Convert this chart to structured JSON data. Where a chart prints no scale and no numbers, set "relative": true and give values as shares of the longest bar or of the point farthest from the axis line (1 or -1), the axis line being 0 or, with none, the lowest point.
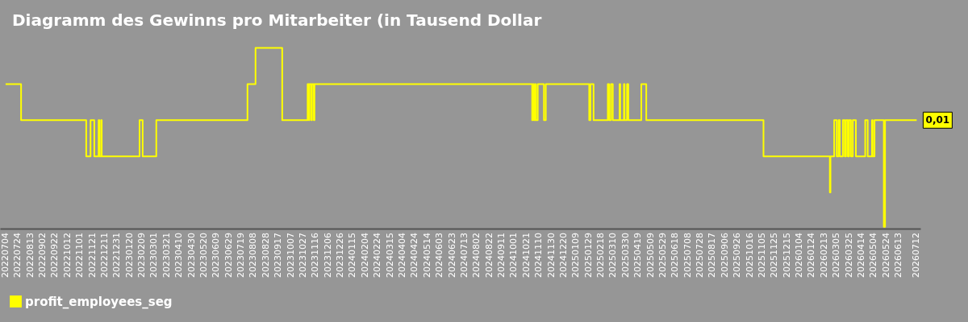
{
  "chart_data": {
    "type": "step",
    "title": "Diagramm des Gewinns pro Mitarbeiter (in Tausend Dollar",
    "relative": true,
    "legend": "bottom",
    "xlim": [
      "2022-06-25",
      "2026-07-18"
    ],
    "xticks": [
      {
        "value": "2022-07-04",
        "label": "20220704"
      },
      {
        "value": "2022-07-24",
        "label": "20220724"
      },
      {
        "value": "2022-08-13",
        "label": "20220813"
      },
      {
        "value": "2022-09-02",
        "label": "20220902"
      },
      {
        "value": "2022-09-22",
        "label": "20220922"
      },
      {
        "value": "2022-10-12",
        "label": "20221012"
      },
      {
        "value": "2022-11-01",
        "label": "20221101"
      },
      {
        "value": "2022-11-21",
        "label": "20221121"
      },
      {
        "value": "2022-12-11",
        "label": "20221211"
      },
      {
        "value": "2022-12-31",
        "label": "20221231"
      },
      {
        "value": "2023-01-20",
        "label": "20230120"
      },
      {
        "value": "2023-02-09",
        "label": "20230209"
      },
      {
        "value": "2023-03-01",
        "label": "20230301"
      },
      {
        "value": "2023-03-21",
        "label": "20230321"
      },
      {
        "value": "2023-04-10",
        "label": "20230410"
      },
      {
        "value": "2023-04-30",
        "label": "20230430"
      },
      {
        "value": "2023-05-20",
        "label": "20230520"
      },
      {
        "value": "2023-06-09",
        "label": "20230609"
      },
      {
        "value": "2023-06-29",
        "label": "20230629"
      },
      {
        "value": "2023-07-19",
        "label": "20230719"
      },
      {
        "value": "2023-08-08",
        "label": "20230808"
      },
      {
        "value": "2023-08-28",
        "label": "20230828"
      },
      {
        "value": "2023-09-17",
        "label": "20230917"
      },
      {
        "value": "2023-10-07",
        "label": "20231007"
      },
      {
        "value": "2023-10-27",
        "label": "20231027"
      },
      {
        "value": "2023-11-16",
        "label": "20231116"
      },
      {
        "value": "2023-12-06",
        "label": "20231206"
      },
      {
        "value": "2023-12-26",
        "label": "20231226"
      },
      {
        "value": "2024-01-15",
        "label": "20240115"
      },
      {
        "value": "2024-02-04",
        "label": "20240204"
      },
      {
        "value": "2024-02-24",
        "label": "20240224"
      },
      {
        "value": "2024-03-15",
        "label": "20240315"
      },
      {
        "value": "2024-04-04",
        "label": "20240404"
      },
      {
        "value": "2024-04-24",
        "label": "20240424"
      },
      {
        "value": "2024-05-14",
        "label": "20240514"
      },
      {
        "value": "2024-06-03",
        "label": "20240603"
      },
      {
        "value": "2024-06-23",
        "label": "20240623"
      },
      {
        "value": "2024-07-13",
        "label": "20240713"
      },
      {
        "value": "2024-08-02",
        "label": "20240802"
      },
      {
        "value": "2024-08-22",
        "label": "20240822"
      },
      {
        "value": "2024-09-11",
        "label": "20240911"
      },
      {
        "value": "2024-10-01",
        "label": "20241001"
      },
      {
        "value": "2024-10-21",
        "label": "20241021"
      },
      {
        "value": "2024-11-10",
        "label": "20241110"
      },
      {
        "value": "2024-11-30",
        "label": "20241130"
      },
      {
        "value": "2024-12-20",
        "label": "20241220"
      },
      {
        "value": "2025-01-09",
        "label": "20250109"
      },
      {
        "value": "2025-01-29",
        "label": "20250129"
      },
      {
        "value": "2025-02-18",
        "label": "20250218"
      },
      {
        "value": "2025-03-10",
        "label": "20250310"
      },
      {
        "value": "2025-03-30",
        "label": "20250330"
      },
      {
        "value": "2025-04-19",
        "label": "20250419"
      },
      {
        "value": "2025-05-09",
        "label": "20250509"
      },
      {
        "value": "2025-05-29",
        "label": "20250529"
      },
      {
        "value": "2025-06-18",
        "label": "20250618"
      },
      {
        "value": "2025-07-08",
        "label": "20250708"
      },
      {
        "value": "2025-07-28",
        "label": "20250728"
      },
      {
        "value": "2025-08-17",
        "label": "20250817"
      },
      {
        "value": "2025-09-06",
        "label": "20250906"
      },
      {
        "value": "2025-09-26",
        "label": "20250926"
      },
      {
        "value": "2025-10-16",
        "label": "20251016"
      },
      {
        "value": "2025-11-05",
        "label": "20251105"
      },
      {
        "value": "2025-11-25",
        "label": "20251125"
      },
      {
        "value": "2025-12-15",
        "label": "20251215"
      },
      {
        "value": "2026-01-04",
        "label": "20260104"
      },
      {
        "value": "2026-01-24",
        "label": "20260124"
      },
      {
        "value": "2026-02-13",
        "label": "20260213"
      },
      {
        "value": "2026-03-05",
        "label": "20260305"
      },
      {
        "value": "2026-03-25",
        "label": "20260325"
      },
      {
        "value": "2026-04-14",
        "label": "20260414"
      },
      {
        "value": "2026-05-04",
        "label": "20260504"
      },
      {
        "value": "2026-05-24",
        "label": "20260524"
      },
      {
        "value": "2026-06-13",
        "label": "20260613"
      },
      {
        "value": "2026-07-12",
        "label": "20260712"
      }
    ],
    "x": [
      "2022-07-04",
      "2022-07-29",
      "2022-11-11",
      "2022-11-18",
      "2022-11-24",
      "2022-12-01",
      "2022-12-02",
      "2022-12-05",
      "2022-12-06",
      "2023-02-05",
      "2023-02-10",
      "2023-03-04",
      "2023-07-29",
      "2023-08-11",
      "2023-09-23",
      "2023-11-03",
      "2023-11-05",
      "2023-11-06",
      "2023-11-09",
      "2023-11-10",
      "2023-11-13",
      "2023-11-14",
      "2024-10-30",
      "2024-10-31",
      "2024-11-02",
      "2024-11-04",
      "2024-11-05",
      "2024-11-08",
      "2024-11-18",
      "2024-11-21",
      "2025-01-30",
      "2025-02-01",
      "2025-02-06",
      "2025-03-01",
      "2025-03-03",
      "2025-03-06",
      "2025-03-09",
      "2025-03-20",
      "2025-03-21",
      "2025-03-27",
      "2025-03-28",
      "2025-04-01",
      "2025-04-03",
      "2025-04-24",
      "2025-05-02",
      "2025-11-07",
      "2026-02-22",
      "2026-02-23",
      "2026-03-01",
      "2026-03-05",
      "2026-03-08",
      "2026-03-10",
      "2026-03-15",
      "2026-03-18",
      "2026-03-20",
      "2026-03-23",
      "2026-03-25",
      "2026-03-28",
      "2026-03-31",
      "2026-04-05",
      "2026-04-20",
      "2026-04-24",
      "2026-05-01",
      "2026-05-02",
      "2026-05-05",
      "2026-05-20",
      "2026-05-22",
      "2026-07-12"
    ],
    "series": [
      {
        "name": "profit_employees_seg",
        "color": "#ffff00",
        "values": [
          0.8,
          0.6,
          0.4,
          0.6,
          0.4,
          0.6,
          0.4,
          0.6,
          0.4,
          0.6,
          0.4,
          0.6,
          0.8,
          1,
          0.6,
          0.8,
          0.6,
          0.8,
          0.6,
          0.8,
          0.6,
          0.8,
          0.6,
          0.8,
          0.6,
          0.8,
          0.6,
          0.8,
          0.6,
          0.8,
          0.6,
          0.8,
          0.6,
          0.8,
          0.6,
          0.8,
          0.6,
          0.8,
          0.6,
          0.8,
          0.6,
          0.8,
          0.6,
          0.8,
          0.6,
          0.4,
          0.2,
          0.4,
          0.6,
          0.4,
          0.6,
          0.4,
          0.6,
          0.4,
          0.6,
          0.4,
          0.6,
          0.4,
          0.6,
          0.4,
          0.6,
          0.4,
          0.6,
          0.4,
          0.6,
          0.01,
          0.6,
          0.6
        ]
      }
    ],
    "annotations": [
      {
        "text": "0,01",
        "x": "2026-07-12",
        "y": 0.6
      }
    ]
  }
}
